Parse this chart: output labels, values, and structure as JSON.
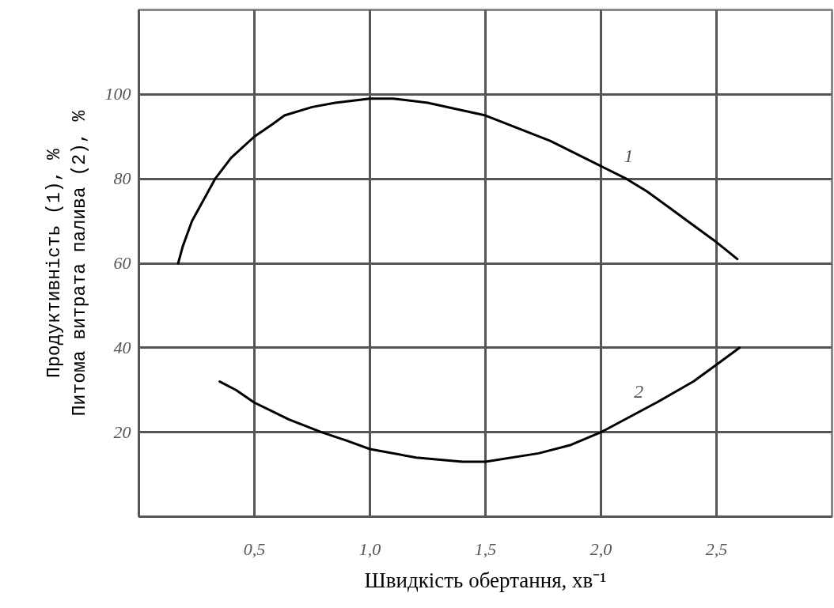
{
  "chart_data": {
    "type": "line",
    "xlabel": "Швидкість обертання, хв⁻¹",
    "ylabel": "Продуктивність (1), %\nПитома витрата палива (2), %",
    "xlim": [
      0,
      3.0
    ],
    "ylim": [
      0,
      120
    ],
    "xticks": [
      {
        "value": 0.5,
        "label": "0,5"
      },
      {
        "value": 1.0,
        "label": "1,0"
      },
      {
        "value": 1.5,
        "label": "1,5"
      },
      {
        "value": 2.0,
        "label": "2,0"
      },
      {
        "value": 2.5,
        "label": "2,5"
      }
    ],
    "yticks": [
      20,
      40,
      60,
      80,
      100
    ],
    "grid": true,
    "series": [
      {
        "name": "1",
        "color": "#000000",
        "x": [
          0.17,
          0.19,
          0.21,
          0.23,
          0.26,
          0.33,
          0.4,
          0.5,
          0.58,
          0.63,
          0.75,
          0.85,
          1.0,
          1.1,
          1.25,
          1.5,
          1.78,
          2.0,
          2.11,
          2.2,
          2.3,
          2.4,
          2.5,
          2.59
        ],
        "values": [
          60,
          64,
          67,
          70,
          73,
          80,
          85,
          90,
          93,
          95,
          97,
          98,
          99,
          99,
          98,
          95,
          89,
          83,
          80,
          77,
          73,
          69,
          65,
          61
        ]
      },
      {
        "name": "2",
        "color": "#000000",
        "x": [
          0.35,
          0.42,
          0.5,
          0.65,
          0.79,
          0.9,
          1.0,
          1.2,
          1.4,
          1.5,
          1.73,
          1.87,
          2.0,
          2.24,
          2.4,
          2.5,
          2.6
        ],
        "values": [
          32,
          30,
          27,
          23,
          20,
          18,
          16,
          14,
          13,
          13,
          15,
          17,
          20,
          27,
          32,
          36,
          40
        ]
      }
    ]
  }
}
